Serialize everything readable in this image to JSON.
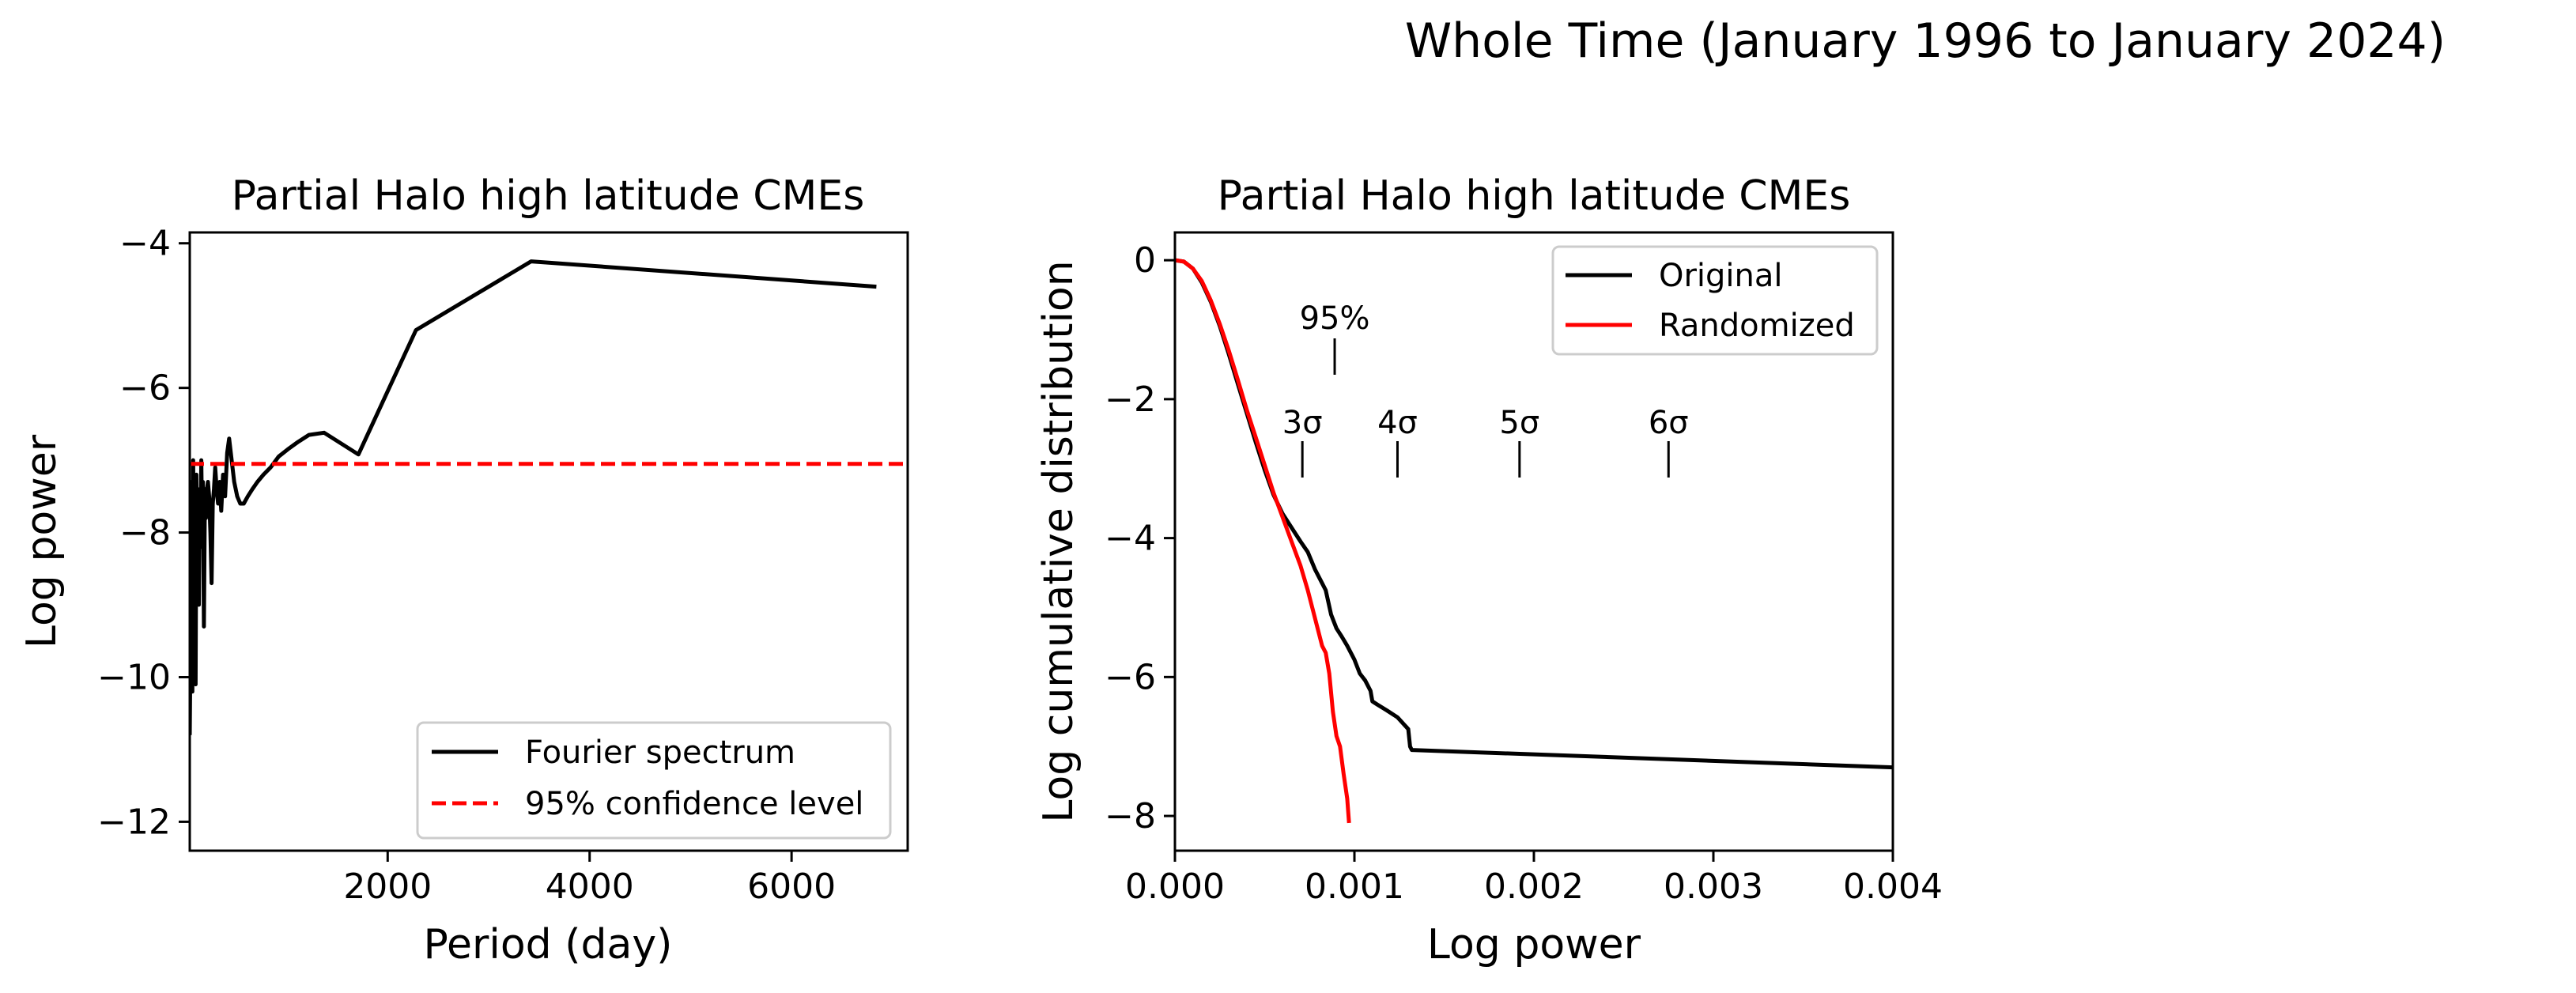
{
  "suptitle": "Whole Time (January 1996 to  January 2024)",
  "chart_data": [
    {
      "type": "line",
      "title": "Partial Halo high latitude CMEs",
      "xlabel": "Period (day)",
      "ylabel": "Log power",
      "xlim": [
        40,
        7150
      ],
      "ylim": [
        -12.4,
        -3.85
      ],
      "xticks": [
        2000,
        4000,
        6000
      ],
      "yticks": [
        -12,
        -10,
        -8,
        -6,
        -4
      ],
      "legend_position": "lower right",
      "series": [
        {
          "name": "Fourier spectrum",
          "color": "#000000",
          "style": "solid",
          "x": [
            40,
            50,
            58,
            66,
            74,
            82,
            90,
            98,
            106,
            114,
            122,
            130,
            138,
            146,
            154,
            162,
            170,
            180,
            190,
            200,
            210,
            220,
            232,
            244,
            256,
            268,
            280,
            292,
            306,
            320,
            336,
            352,
            370,
            390,
            410,
            430,
            455,
            480,
            510,
            540,
            575,
            615,
            660,
            710,
            770,
            840,
            920,
            1010,
            1110,
            1220,
            1370,
            1710,
            2280,
            3420,
            6840
          ],
          "y": [
            -10.8,
            -9.1,
            -7.3,
            -10.2,
            -7.0,
            -8.6,
            -7.6,
            -10.1,
            -7.2,
            -8.4,
            -7.5,
            -9.0,
            -7.4,
            -8.2,
            -7.0,
            -7.9,
            -7.3,
            -9.3,
            -7.4,
            -7.8,
            -7.4,
            -7.3,
            -7.5,
            -8.0,
            -8.7,
            -7.6,
            -7.4,
            -7.1,
            -7.4,
            -7.6,
            -7.3,
            -7.7,
            -7.2,
            -7.5,
            -6.9,
            -6.7,
            -7.0,
            -7.3,
            -7.5,
            -7.6,
            -7.6,
            -7.5,
            -7.4,
            -7.3,
            -7.2,
            -7.1,
            -6.95,
            -6.85,
            -6.75,
            -6.65,
            -6.62,
            -6.92,
            -5.2,
            -4.25,
            -4.6
          ]
        },
        {
          "name": "95% confidence level",
          "color": "#ff0000",
          "style": "dashed",
          "x": [
            40,
            7150
          ],
          "y": [
            -7.05,
            -7.05
          ]
        }
      ]
    },
    {
      "type": "line",
      "title": "Partial Halo high latitude CMEs",
      "xlabel": "Log power",
      "ylabel": "Log cumulative distribution",
      "xlim": [
        0,
        0.004
      ],
      "ylim": [
        -8.5,
        0.4
      ],
      "xticks": [
        "0.000",
        "0.001",
        "0.002",
        "0.003",
        "0.004"
      ],
      "yticks": [
        0,
        -2,
        -4,
        -6,
        -8
      ],
      "legend_position": "upper right",
      "series": [
        {
          "name": "Original",
          "color": "#000000",
          "style": "solid",
          "x": [
            0,
            5e-05,
            0.0001,
            0.00015,
            0.0002,
            0.00025,
            0.0003,
            0.00035,
            0.0004,
            0.00045,
            0.0005,
            0.00055,
            0.0006,
            0.00065,
            0.0007,
            0.00074,
            0.00078,
            0.00081,
            0.00084,
            0.00087,
            0.0009,
            0.00093,
            0.00096,
            0.001,
            0.00103,
            0.00106,
            0.00109,
            0.0011,
            0.00113,
            0.00118,
            0.00124,
            0.0013,
            0.00131,
            0.00132,
            0.004
          ],
          "y": [
            0,
            -0.02,
            -0.12,
            -0.32,
            -0.6,
            -0.95,
            -1.35,
            -1.78,
            -2.2,
            -2.62,
            -3.02,
            -3.38,
            -3.65,
            -3.85,
            -4.05,
            -4.2,
            -4.45,
            -4.6,
            -4.75,
            -5.1,
            -5.3,
            -5.42,
            -5.55,
            -5.75,
            -5.95,
            -6.05,
            -6.2,
            -6.35,
            -6.4,
            -6.48,
            -6.58,
            -6.75,
            -7.0,
            -7.05,
            -7.3
          ]
        },
        {
          "name": "Randomized",
          "color": "#ff0000",
          "style": "solid",
          "x": [
            0,
            5e-05,
            0.0001,
            0.00015,
            0.0002,
            0.00025,
            0.0003,
            0.00035,
            0.0004,
            0.00045,
            0.0005,
            0.00055,
            0.0006,
            0.00065,
            0.0007,
            0.00074,
            0.00077,
            0.0008,
            0.00082,
            0.00084,
            0.00086,
            0.00088,
            0.0009,
            0.00092,
            0.00094,
            0.00096,
            0.00097
          ],
          "y": [
            0,
            -0.02,
            -0.12,
            -0.3,
            -0.58,
            -0.92,
            -1.3,
            -1.72,
            -2.15,
            -2.55,
            -2.95,
            -3.35,
            -3.7,
            -4.05,
            -4.4,
            -4.75,
            -5.05,
            -5.35,
            -5.55,
            -5.65,
            -5.95,
            -6.5,
            -6.85,
            -7.0,
            -7.4,
            -7.75,
            -8.1
          ]
        }
      ],
      "annotations": [
        {
          "label": "95%",
          "x": 0.00089
        },
        {
          "label": "3σ",
          "x": 0.00071
        },
        {
          "label": "4σ",
          "x": 0.00124
        },
        {
          "label": "5σ",
          "x": 0.00192
        },
        {
          "label": "6σ",
          "x": 0.00275
        }
      ]
    }
  ]
}
